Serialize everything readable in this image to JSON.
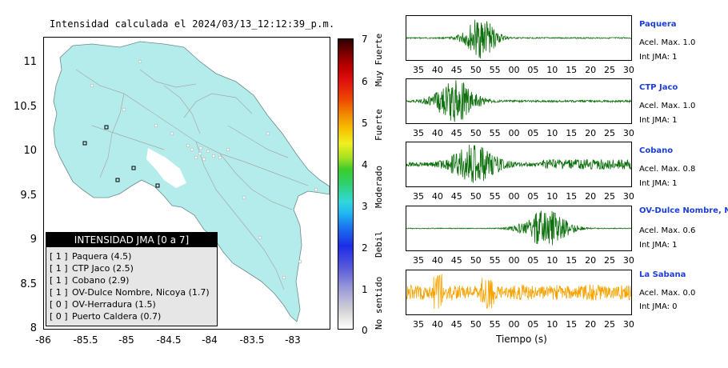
{
  "map": {
    "title": "Intensidad calculada el 2024/03/13_12:12:39_p.m.",
    "y_ticks": [
      "11",
      "10.5",
      "10",
      "9.5",
      "9",
      "8.5",
      "8"
    ],
    "x_ticks": [
      "-86",
      "-85.5",
      "-85",
      "-84.5",
      "-84",
      "-83.5",
      "-83"
    ],
    "land_color": "#b4ecec",
    "water_color": "#ffffff"
  },
  "legend": {
    "title": "INTENSIDAD JMA [0 a 7]",
    "rows": [
      {
        "level": "[ 1 ]",
        "label": "Paquera (4.5)"
      },
      {
        "level": "[ 1 ]",
        "label": "CTP Jaco (2.5)"
      },
      {
        "level": "[ 1 ]",
        "label": "Cobano (2.9)"
      },
      {
        "level": "[ 1 ]",
        "label": "OV-Dulce Nombre, Nicoya (1.7)"
      },
      {
        "level": "[ 0 ]",
        "label": "OV-Herradura (1.5)"
      },
      {
        "level": "[ 0 ]",
        "label": "Puerto Caldera (0.7)"
      }
    ]
  },
  "colorbar": {
    "ticks": [
      "7",
      "6",
      "5",
      "4",
      "3",
      "2",
      "1",
      "0"
    ],
    "labels": [
      "Muy Fuerte",
      "Fuerte",
      "Moderado",
      "Debil",
      "No sentido"
    ]
  },
  "traces": {
    "x_ticks": [
      "35",
      "40",
      "45",
      "50",
      "55",
      "00",
      "05",
      "10",
      "15",
      "20",
      "25",
      "30"
    ],
    "x_label": "Tiempo (s)",
    "stations": [
      {
        "name": "Paquera",
        "accel": "Acel. Max. 1.0",
        "int": "Int JMA: 1",
        "color": "#0a6e0a"
      },
      {
        "name": "CTP Jaco",
        "accel": "Acel. Max. 1.0",
        "int": "Int JMA: 1",
        "color": "#0a6e0a"
      },
      {
        "name": "Cobano",
        "accel": "Acel. Max. 0.8",
        "int": "Int JMA: 1",
        "color": "#0a6e0a"
      },
      {
        "name": "OV-Dulce Nombre, Nico",
        "accel": "Acel. Max. 0.6",
        "int": "Int JMA: 1",
        "color": "#0a6e0a"
      },
      {
        "name": "La Sabana",
        "accel": "Acel. Max. 0.0",
        "int": "Int JMA: 0",
        "color": "#f5a300"
      }
    ]
  }
}
